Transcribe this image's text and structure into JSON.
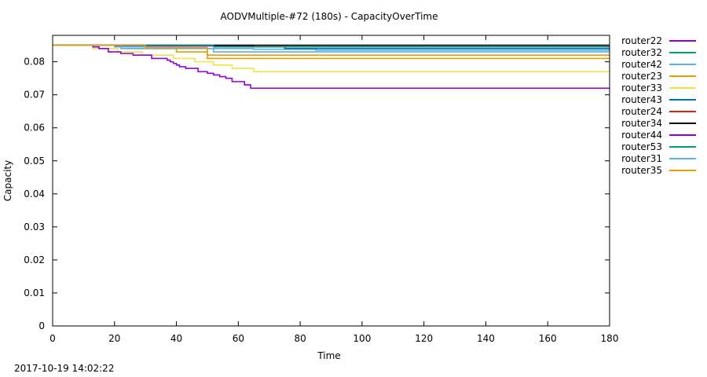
{
  "footer": {
    "timestamp": "2017-10-19 14:02:22"
  },
  "chart_data": {
    "type": "line",
    "title": "AODVMultiple-#72 (180s) - CapacityOverTime",
    "xlabel": "Time",
    "ylabel": "Capacity",
    "xlim": [
      0,
      180
    ],
    "ylim": [
      0,
      0.088
    ],
    "xticks": [
      0,
      20,
      40,
      60,
      80,
      100,
      120,
      140,
      160,
      180
    ],
    "yticks": [
      0,
      0.01,
      0.02,
      0.03,
      0.04,
      0.05,
      0.06,
      0.07,
      0.08
    ],
    "ytick_labels": [
      "0",
      "0.01",
      "0.02",
      "0.03",
      "0.04",
      "0.05",
      "0.06",
      "0.07",
      "0.08"
    ],
    "legend_position": "outside-right",
    "grid": false,
    "series": [
      {
        "name": "router22",
        "color": "#9400d3",
        "step": true,
        "x": [
          0,
          20,
          52,
          65,
          180
        ],
        "y": [
          0.085,
          0.0848,
          0.0846,
          0.0845,
          0.0845
        ]
      },
      {
        "name": "router32",
        "color": "#009e73",
        "step": true,
        "x": [
          0,
          180
        ],
        "y": [
          0.085,
          0.085
        ]
      },
      {
        "name": "router42",
        "color": "#56b4e9",
        "step": true,
        "x": [
          0,
          20,
          30,
          50,
          65,
          85,
          180
        ],
        "y": [
          0.085,
          0.0845,
          0.0843,
          0.084,
          0.0838,
          0.0835,
          0.0835
        ]
      },
      {
        "name": "router23",
        "color": "#e69f00",
        "step": true,
        "x": [
          0,
          22,
          40,
          50,
          180
        ],
        "y": [
          0.085,
          0.084,
          0.083,
          0.082,
          0.082
        ]
      },
      {
        "name": "router33",
        "color": "#f0e442",
        "step": true,
        "x": [
          0,
          13,
          21,
          29,
          34,
          39,
          46,
          52,
          58,
          65,
          180
        ],
        "y": [
          0.085,
          0.084,
          0.083,
          0.082,
          0.082,
          0.081,
          0.08,
          0.079,
          0.078,
          0.077,
          0.077
        ]
      },
      {
        "name": "router43",
        "color": "#0072b2",
        "step": true,
        "x": [
          0,
          65,
          75,
          180
        ],
        "y": [
          0.085,
          0.0845,
          0.084,
          0.084
        ]
      },
      {
        "name": "router24",
        "color": "#e51e10",
        "step": true,
        "x": [
          0,
          180
        ],
        "y": [
          0.085,
          0.085
        ]
      },
      {
        "name": "router34",
        "color": "#000000",
        "step": true,
        "x": [
          0,
          180
        ],
        "y": [
          0.085,
          0.085
        ]
      },
      {
        "name": "router44",
        "color": "#9400d3",
        "step": true,
        "x": [
          0,
          13,
          15,
          18,
          22,
          26,
          32,
          37,
          38,
          39,
          40,
          41,
          43,
          47,
          50,
          52,
          54,
          56,
          58,
          62,
          64,
          180
        ],
        "y": [
          0.085,
          0.0845,
          0.084,
          0.083,
          0.0825,
          0.082,
          0.081,
          0.0805,
          0.08,
          0.0795,
          0.079,
          0.0785,
          0.078,
          0.077,
          0.0765,
          0.076,
          0.0755,
          0.075,
          0.074,
          0.073,
          0.072,
          0.072
        ]
      },
      {
        "name": "router53",
        "color": "#009e73",
        "step": true,
        "x": [
          0,
          52,
          180
        ],
        "y": [
          0.085,
          0.0845,
          0.0845
        ]
      },
      {
        "name": "router31",
        "color": "#56b4e9",
        "step": true,
        "x": [
          0,
          22,
          52,
          180
        ],
        "y": [
          0.085,
          0.084,
          0.083,
          0.083
        ]
      },
      {
        "name": "router35",
        "color": "#e69f00",
        "step": true,
        "x": [
          0,
          30,
          50,
          180
        ],
        "y": [
          0.085,
          0.0843,
          0.081,
          0.081
        ]
      }
    ]
  }
}
